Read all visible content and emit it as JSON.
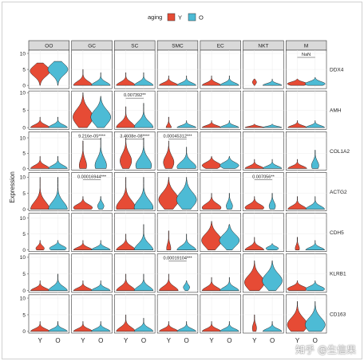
{
  "legend": {
    "title": "aging",
    "items": [
      {
        "label": "Y",
        "color": "#e64b35"
      },
      {
        "label": "O",
        "color": "#4dbbd5"
      }
    ]
  },
  "watermark": "知乎 @生信果",
  "chart_data": {
    "type": "violin",
    "ylabel": "Expression",
    "x_groups": [
      "Y",
      "O"
    ],
    "facet_columns": [
      "OO",
      "GC",
      "SC",
      "SMC",
      "EC",
      "NKT",
      "M"
    ],
    "facet_rows": [
      "DDX4",
      "AMH",
      "COL1A2",
      "ACTG2",
      "CDH5",
      "KLRB1",
      "CD163"
    ],
    "y_ticks": {
      "DDX4": [
        0,
        5,
        10
      ],
      "AMH": [
        0,
        5,
        10
      ],
      "COL1A2": [
        0,
        5,
        10
      ],
      "ACTG2": [
        0,
        5,
        10
      ],
      "CDH5": [
        0,
        5,
        10
      ],
      "KLRB1": [
        0,
        5,
        10
      ],
      "CD163": [
        0,
        5,
        10
      ]
    },
    "ylim": {
      "DDX4": [
        -1,
        11
      ],
      "AMH": [
        -0.5,
        10.5
      ],
      "COL1A2": [
        -0.5,
        12
      ],
      "ACTG2": [
        -0.5,
        11.5
      ],
      "CDH5": [
        -0.5,
        11.5
      ],
      "KLRB1": [
        -0.5,
        11
      ],
      "CD163": [
        -0.5,
        11
      ]
    },
    "violins": [
      {
        "gene": "DDX4",
        "cell": "OO",
        "Y": {
          "min": 0,
          "max": 7,
          "peak": 4.5,
          "width": 0.95
        },
        "O": {
          "min": 0,
          "max": 7.5,
          "peak": 5,
          "width": 0.95
        }
      },
      {
        "gene": "DDX4",
        "cell": "GC",
        "Y": {
          "min": 0,
          "max": 5,
          "peak": 0,
          "width": 0.9
        },
        "O": {
          "min": 0,
          "max": 4,
          "peak": 0,
          "width": 0.9
        }
      },
      {
        "gene": "DDX4",
        "cell": "SC",
        "Y": {
          "min": 0,
          "max": 4,
          "peak": 0,
          "width": 0.9
        },
        "O": {
          "min": 0,
          "max": 4,
          "peak": 0,
          "width": 0.9
        }
      },
      {
        "gene": "DDX4",
        "cell": "SMC",
        "Y": {
          "min": 0,
          "max": 3,
          "peak": 0,
          "width": 0.9
        },
        "O": {
          "min": 0,
          "max": 3,
          "peak": 0,
          "width": 0.9
        }
      },
      {
        "gene": "DDX4",
        "cell": "EC",
        "Y": {
          "min": 0,
          "max": 3,
          "peak": 0,
          "width": 0.9
        },
        "O": {
          "min": 0,
          "max": 3,
          "peak": 0,
          "width": 0.9
        }
      },
      {
        "gene": "DDX4",
        "cell": "NKT",
        "Y": {
          "min": 0,
          "max": 2,
          "peak": 1,
          "width": 0.2
        },
        "O": {
          "min": 0,
          "max": 2,
          "peak": 0,
          "width": 0.9
        }
      },
      {
        "gene": "DDX4",
        "cell": "M",
        "Y": {
          "min": 0,
          "max": 2,
          "peak": 0.5,
          "width": 0.95
        },
        "O": {
          "min": 0,
          "max": 2.5,
          "peak": 0.5,
          "width": 0.95
        }
      },
      {
        "gene": "AMH",
        "cell": "OO",
        "Y": {
          "min": 0,
          "max": 3,
          "peak": 0,
          "width": 0.9
        },
        "O": {
          "min": 0,
          "max": 3,
          "peak": 0,
          "width": 0.9
        }
      },
      {
        "gene": "AMH",
        "cell": "GC",
        "Y": {
          "min": 0,
          "max": 10,
          "peak": 3,
          "width": 0.95
        },
        "O": {
          "min": 0,
          "max": 9,
          "peak": 3,
          "width": 0.95
        }
      },
      {
        "gene": "AMH",
        "cell": "SC",
        "Y": {
          "min": 0,
          "max": 6,
          "peak": 0,
          "width": 0.9
        },
        "O": {
          "min": 0,
          "max": 7,
          "peak": 0,
          "width": 0.9
        }
      },
      {
        "gene": "AMH",
        "cell": "SMC",
        "Y": {
          "min": 0,
          "max": 3,
          "peak": 0,
          "width": 0.25
        },
        "O": {
          "min": 0,
          "max": 2,
          "peak": 0,
          "width": 0.9
        }
      },
      {
        "gene": "AMH",
        "cell": "EC",
        "Y": {
          "min": 0,
          "max": 2,
          "peak": 0,
          "width": 0.9
        },
        "O": {
          "min": 0,
          "max": 2,
          "peak": 0,
          "width": 0.9
        }
      },
      {
        "gene": "AMH",
        "cell": "NKT",
        "Y": {
          "min": 0,
          "max": 1,
          "peak": 0,
          "width": 0.9
        },
        "O": {
          "min": 0,
          "max": 1,
          "peak": 0,
          "width": 0.9
        }
      },
      {
        "gene": "AMH",
        "cell": "M",
        "Y": {
          "min": 0,
          "max": 2,
          "peak": 0,
          "width": 0.9
        },
        "O": {
          "min": 0,
          "max": 2,
          "peak": 0,
          "width": 0.9
        }
      },
      {
        "gene": "COL1A2",
        "cell": "OO",
        "Y": {
          "min": 0,
          "max": 4,
          "peak": 0,
          "width": 0.9
        },
        "O": {
          "min": 0,
          "max": 4,
          "peak": 0,
          "width": 0.9
        }
      },
      {
        "gene": "COL1A2",
        "cell": "GC",
        "Y": {
          "min": 0,
          "max": 9,
          "peak": 1,
          "width": 0.35
        },
        "O": {
          "min": 0,
          "max": 10,
          "peak": 1,
          "width": 0.55
        }
      },
      {
        "gene": "COL1A2",
        "cell": "SC",
        "Y": {
          "min": 0,
          "max": 10,
          "peak": 2.5,
          "width": 0.55
        },
        "O": {
          "min": 0,
          "max": 10,
          "peak": 1,
          "width": 0.75
        }
      },
      {
        "gene": "COL1A2",
        "cell": "SMC",
        "Y": {
          "min": 0,
          "max": 9,
          "peak": 2,
          "width": 0.5
        },
        "O": {
          "min": 0,
          "max": 7,
          "peak": 0.5,
          "width": 0.9
        }
      },
      {
        "gene": "COL1A2",
        "cell": "EC",
        "Y": {
          "min": 0,
          "max": 4,
          "peak": 1,
          "width": 0.9
        },
        "O": {
          "min": 0,
          "max": 4,
          "peak": 1,
          "width": 0.9
        }
      },
      {
        "gene": "COL1A2",
        "cell": "NKT",
        "Y": {
          "min": 0,
          "max": 3,
          "peak": 0,
          "width": 0.9
        },
        "O": {
          "min": 0,
          "max": 3,
          "peak": 0,
          "width": 0.9
        }
      },
      {
        "gene": "COL1A2",
        "cell": "M",
        "Y": {
          "min": 0,
          "max": 3,
          "peak": 0,
          "width": 0.9
        },
        "O": {
          "min": 0,
          "max": 6,
          "peak": 1,
          "width": 0.35
        }
      },
      {
        "gene": "ACTG2",
        "cell": "OO",
        "Y": {
          "min": 0,
          "max": 10,
          "peak": 0,
          "width": 0.9
        },
        "O": {
          "min": 0,
          "max": 10,
          "peak": 0,
          "width": 0.9
        }
      },
      {
        "gene": "ACTG2",
        "cell": "GC",
        "Y": {
          "min": 0,
          "max": 4,
          "peak": 0.5,
          "width": 0.9
        },
        "O": {
          "min": 0,
          "max": 4,
          "peak": 1,
          "width": 0.3
        }
      },
      {
        "gene": "ACTG2",
        "cell": "SC",
        "Y": {
          "min": 0,
          "max": 10,
          "peak": 0.5,
          "width": 0.9
        },
        "O": {
          "min": 0,
          "max": 10,
          "peak": 0.5,
          "width": 0.9
        }
      },
      {
        "gene": "ACTG2",
        "cell": "SMC",
        "Y": {
          "min": 0,
          "max": 10,
          "peak": 3,
          "width": 0.95
        },
        "O": {
          "min": 0,
          "max": 10,
          "peak": 3,
          "width": 0.95
        }
      },
      {
        "gene": "ACTG2",
        "cell": "EC",
        "Y": {
          "min": 0,
          "max": 5,
          "peak": 0.5,
          "width": 0.9
        },
        "O": {
          "min": 0,
          "max": 5,
          "peak": 1,
          "width": 0.3
        }
      },
      {
        "gene": "ACTG2",
        "cell": "NKT",
        "Y": {
          "min": 0,
          "max": 4,
          "peak": 0.5,
          "width": 0.9
        },
        "O": {
          "min": 0,
          "max": 5,
          "peak": 1,
          "width": 0.3
        }
      },
      {
        "gene": "ACTG2",
        "cell": "M",
        "Y": {
          "min": 0,
          "max": 4,
          "peak": 0,
          "width": 0.9
        },
        "O": {
          "min": 0,
          "max": 4,
          "peak": 0,
          "width": 0.9
        }
      },
      {
        "gene": "CDH5",
        "cell": "OO",
        "Y": {
          "min": 0,
          "max": 3,
          "peak": 0.5,
          "width": 0.4
        },
        "O": {
          "min": 0,
          "max": 3,
          "peak": 0.5,
          "width": 0.8
        }
      },
      {
        "gene": "CDH5",
        "cell": "GC",
        "Y": {
          "min": 0,
          "max": 3,
          "peak": 0,
          "width": 0.9
        },
        "O": {
          "min": 0,
          "max": 3,
          "peak": 0,
          "width": 0.9
        }
      },
      {
        "gene": "CDH5",
        "cell": "SC",
        "Y": {
          "min": 0,
          "max": 5,
          "peak": 0,
          "width": 0.9
        },
        "O": {
          "min": 0,
          "max": 8,
          "peak": 0,
          "width": 0.9
        }
      },
      {
        "gene": "CDH5",
        "cell": "SMC",
        "Y": {
          "min": 0,
          "max": 6,
          "peak": 0.5,
          "width": 0.2
        },
        "O": {
          "min": 0,
          "max": 5,
          "peak": 0,
          "width": 0.9
        }
      },
      {
        "gene": "CDH5",
        "cell": "EC",
        "Y": {
          "min": 0,
          "max": 9,
          "peak": 3,
          "width": 0.95
        },
        "O": {
          "min": 0,
          "max": 8,
          "peak": 3,
          "width": 0.95
        }
      },
      {
        "gene": "CDH5",
        "cell": "NKT",
        "Y": {
          "min": 0,
          "max": 4,
          "peak": 0,
          "width": 0.9
        },
        "O": {
          "min": 0,
          "max": 2,
          "peak": 0.5,
          "width": 0.6
        }
      },
      {
        "gene": "CDH5",
        "cell": "M",
        "Y": {
          "min": 0,
          "max": 4,
          "peak": 0.5,
          "width": 0.2
        },
        "O": {
          "min": 0,
          "max": 3,
          "peak": 0,
          "width": 0.9
        }
      },
      {
        "gene": "KLRB1",
        "cell": "OO",
        "Y": {
          "min": 0,
          "max": 3,
          "peak": 0,
          "width": 0.9
        },
        "O": {
          "min": 0,
          "max": 5,
          "peak": 0,
          "width": 0.9
        }
      },
      {
        "gene": "KLRB1",
        "cell": "GC",
        "Y": {
          "min": 0,
          "max": 3,
          "peak": 0,
          "width": 0.9
        },
        "O": {
          "min": 0,
          "max": 3,
          "peak": 0,
          "width": 0.9
        }
      },
      {
        "gene": "KLRB1",
        "cell": "SC",
        "Y": {
          "min": 0,
          "max": 5,
          "peak": 0,
          "width": 0.9
        },
        "O": {
          "min": 0,
          "max": 5,
          "peak": 0,
          "width": 0.9
        }
      },
      {
        "gene": "KLRB1",
        "cell": "SMC",
        "Y": {
          "min": 0,
          "max": 5,
          "peak": 0,
          "width": 0.9
        },
        "O": {
          "min": 0,
          "max": 3,
          "peak": 1,
          "width": 0.3
        }
      },
      {
        "gene": "KLRB1",
        "cell": "EC",
        "Y": {
          "min": 0,
          "max": 4,
          "peak": 0,
          "width": 0.9
        },
        "O": {
          "min": 0,
          "max": 4,
          "peak": 0,
          "width": 0.9
        }
      },
      {
        "gene": "KLRB1",
        "cell": "NKT",
        "Y": {
          "min": 0,
          "max": 9,
          "peak": 2.5,
          "width": 0.95
        },
        "O": {
          "min": 0,
          "max": 9,
          "peak": 3,
          "width": 0.95
        }
      },
      {
        "gene": "KLRB1",
        "cell": "M",
        "Y": {
          "min": 0,
          "max": 3,
          "peak": 0.5,
          "width": 0.95
        },
        "O": {
          "min": 0,
          "max": 3,
          "peak": 0.5,
          "width": 0.9
        }
      },
      {
        "gene": "CD163",
        "cell": "OO",
        "Y": {
          "min": 0,
          "max": 3,
          "peak": 0,
          "width": 0.9
        },
        "O": {
          "min": 0,
          "max": 3,
          "peak": 0,
          "width": 0.9
        }
      },
      {
        "gene": "CD163",
        "cell": "GC",
        "Y": {
          "min": 0,
          "max": 3,
          "peak": 0,
          "width": 0.9
        },
        "O": {
          "min": 0,
          "max": 3,
          "peak": 0,
          "width": 0.9
        }
      },
      {
        "gene": "CD163",
        "cell": "SC",
        "Y": {
          "min": 0,
          "max": 5,
          "peak": 0,
          "width": 0.9
        },
        "O": {
          "min": 0,
          "max": 4,
          "peak": 0,
          "width": 0.9
        }
      },
      {
        "gene": "CD163",
        "cell": "SMC",
        "Y": {
          "min": 0,
          "max": 3,
          "peak": 0,
          "width": 0.9
        },
        "O": {
          "min": 0,
          "max": 3,
          "peak": 0,
          "width": 0.9
        }
      },
      {
        "gene": "CD163",
        "cell": "EC",
        "Y": {
          "min": 0,
          "max": 3,
          "peak": 0,
          "width": 0.9
        },
        "O": {
          "min": 0,
          "max": 3,
          "peak": 0,
          "width": 0.9
        }
      },
      {
        "gene": "CD163",
        "cell": "NKT",
        "Y": {
          "min": 0,
          "max": 5,
          "peak": 1,
          "width": 0.2
        },
        "O": {
          "min": 0,
          "max": 3,
          "peak": 0,
          "width": 0.9
        }
      },
      {
        "gene": "CD163",
        "cell": "M",
        "Y": {
          "min": 0,
          "max": 9,
          "peak": 2,
          "width": 0.95
        },
        "O": {
          "min": 0,
          "max": 9,
          "peak": 2,
          "width": 0.95
        }
      }
    ],
    "annotations": [
      {
        "gene": "DDX4",
        "cell": "M",
        "text": "NaN"
      },
      {
        "gene": "AMH",
        "cell": "SC",
        "text": "0.007392**"
      },
      {
        "gene": "COL1A2",
        "cell": "GC",
        "text": "9.216e-05****"
      },
      {
        "gene": "COL1A2",
        "cell": "SC",
        "text": "3.4608e-08****"
      },
      {
        "gene": "COL1A2",
        "cell": "SMC",
        "text": "0.00045312***"
      },
      {
        "gene": "ACTG2",
        "cell": "GC",
        "text": "0.00016944***"
      },
      {
        "gene": "ACTG2",
        "cell": "NKT",
        "text": "0.007056**"
      },
      {
        "gene": "KLRB1",
        "cell": "SMC",
        "text": "0.00019104***"
      }
    ],
    "grid": true,
    "legend_position": "top"
  }
}
